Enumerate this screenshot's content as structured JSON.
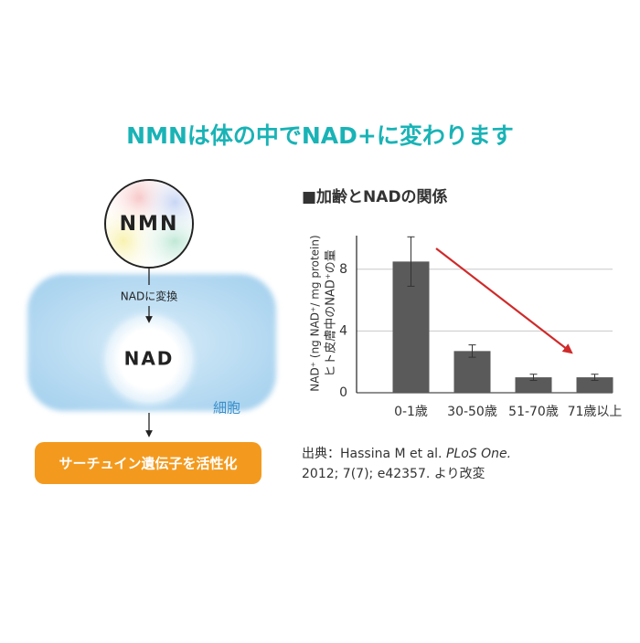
{
  "title": "NMNは体の中でNAD+に変わります",
  "diagram": {
    "nmn": "NMN",
    "convert": "NADに変換",
    "nad": "NAD",
    "cell": "細胞",
    "result": "サーチュイン遺伝子を活性化"
  },
  "chart_data": {
    "type": "bar",
    "title": "■加齢とNADの関係",
    "y_label": [
      "NAD⁺ (ng NAD⁺/ mg protein)",
      "ヒト皮膚中のNAD⁺の量"
    ],
    "categories": [
      "0-1歳",
      "30-50歳",
      "51-70歳",
      "71歳以上"
    ],
    "values": [
      8.5,
      2.7,
      1.0,
      1.0
    ],
    "errors": [
      1.6,
      0.4,
      0.2,
      0.2
    ],
    "color": "#5a5a5a",
    "ylim": [
      0,
      10
    ],
    "yticks": [
      0,
      4,
      8
    ],
    "grid": true
  },
  "source": {
    "text1": "出典：Hassina M et al.",
    "journal": "PLoS One.",
    "text2": "2012; 7(7); e42357. より改変"
  }
}
